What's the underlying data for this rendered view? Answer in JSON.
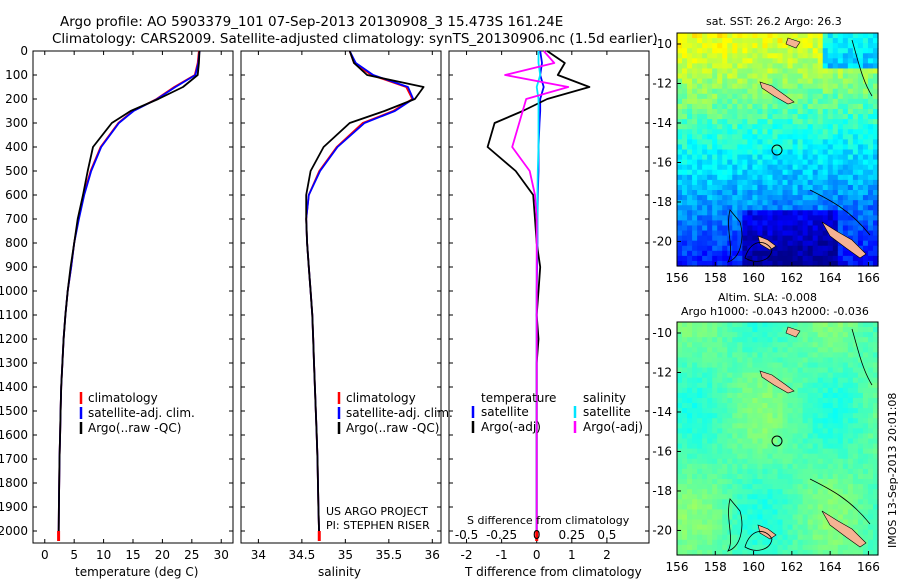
{
  "header": {
    "title_line1": "Argo profile: AO 5903379_101 07-Sep-2013 20130908_3 15.473S 161.24E",
    "title_line2": "Climatology: CARS2009. Satellite-adjusted climatology: synTS_20130906.nc (1.5d earlier)"
  },
  "colors": {
    "climatology": "#ff0000",
    "satellite": "#0000ff",
    "argo": "#000000",
    "salinity_satellite": "#00e5ff",
    "salinity_argo": "#ff00ff",
    "land": "#f5b393"
  },
  "depth_axis": {
    "ticks": [
      "0",
      "100",
      "200",
      "300",
      "400",
      "500",
      "600",
      "700",
      "800",
      "900",
      "1000",
      "1100",
      "1200",
      "1300",
      "1400",
      "1500",
      "1600",
      "1700",
      "1800",
      "1900",
      "2000"
    ]
  },
  "panels": {
    "temperature": {
      "xlabel": "temperature (deg C)",
      "ticks": [
        "0",
        "5",
        "10",
        "15",
        "20",
        "25",
        "30"
      ],
      "legend": [
        "climatology",
        "satellite-adj. clim.",
        "Argo(..raw -QC)"
      ]
    },
    "salinity": {
      "xlabel": "salinity",
      "ticks": [
        "34",
        "34.5",
        "35",
        "35.5",
        "36"
      ],
      "legend": [
        "climatology",
        "satellite-adj. clim.",
        "Argo(..raw -QC)"
      ],
      "note_line1": "US ARGO PROJECT",
      "note_line2": "PI: STEPHEN RISER"
    },
    "difference": {
      "xlabel": "T difference from climatology",
      "top_label": "S difference from climatology",
      "t_ticks": [
        "-2",
        "-1",
        "0",
        "1",
        "2"
      ],
      "s_ticks": [
        "-0.5",
        "-0.25",
        "0",
        "0.25",
        "0.5"
      ],
      "legend_temperature_head": "temperature",
      "legend_salinity_head": "salinity",
      "legend_satellite": "satellite",
      "legend_argo": "Argo(-adj)"
    },
    "sst_map": {
      "title": "sat. SST: 26.2 Argo: 26.3",
      "xticks": [
        "156",
        "158",
        "160",
        "162",
        "164",
        "166"
      ],
      "yticks": [
        "-10",
        "-12",
        "-14",
        "-16",
        "-18",
        "-20"
      ]
    },
    "sla_map": {
      "title_line1": "Altim. SLA: -0.008",
      "title_line2": "Argo h1000: -0.043 h2000: -0.036",
      "xticks": [
        "156",
        "158",
        "160",
        "162",
        "164",
        "166"
      ],
      "yticks": [
        "-10",
        "-12",
        "-14",
        "-16",
        "-18",
        "-20"
      ]
    }
  },
  "side_stamp": "IMOS 13-Sep-2013 20:01:08",
  "chart_data": [
    {
      "type": "line",
      "panel": "temperature",
      "xlabel": "temperature (deg C)",
      "ylim": [
        2050,
        0
      ],
      "xlim": [
        -2,
        32
      ],
      "series": [
        {
          "name": "climatology",
          "x": [
            26.2,
            26.0,
            25.5,
            22,
            19,
            15,
            12.5,
            9.5,
            7.8,
            6.6,
            5.7,
            5.0,
            4.5,
            3.9,
            3.5,
            3.2,
            3.0,
            2.8,
            2.7,
            2.6,
            2.5,
            2.4,
            2.35
          ],
          "y": [
            0,
            50,
            100,
            150,
            200,
            250,
            300,
            400,
            500,
            600,
            700,
            800,
            900,
            1000,
            1100,
            1200,
            1300,
            1400,
            1500,
            1600,
            1700,
            1900,
            2040
          ]
        },
        {
          "name": "satellite-adj. clim.",
          "x": [
            26.3,
            26.1,
            25.6,
            22.2,
            19.1,
            15.1,
            12.6,
            9.6,
            7.9,
            6.7,
            5.8,
            5.0,
            4.5,
            3.9,
            3.5,
            3.2,
            3.0,
            2.8,
            2.7,
            2.6,
            2.5,
            2.4,
            2.35
          ],
          "y": [
            0,
            50,
            100,
            150,
            200,
            250,
            300,
            400,
            500,
            600,
            700,
            800,
            900,
            1000,
            1100,
            1200,
            1300,
            1400,
            1500,
            1600,
            1700,
            1900,
            2040
          ]
        },
        {
          "name": "Argo(..raw -QC)",
          "x": [
            26.3,
            26.2,
            26.0,
            23.5,
            19.3,
            14.6,
            11.4,
            8.2,
            7.3,
            6.5,
            5.6,
            5.0,
            4.4,
            3.9,
            3.5,
            3.2,
            3.0,
            2.8,
            2.7,
            2.6,
            2.5,
            2.4,
            2.35
          ],
          "y": [
            0,
            50,
            100,
            150,
            200,
            250,
            300,
            400,
            500,
            600,
            700,
            800,
            900,
            1000,
            1100,
            1200,
            1300,
            1400,
            1500,
            1600,
            1700,
            1900,
            2040
          ]
        }
      ]
    },
    {
      "type": "line",
      "panel": "salinity",
      "xlabel": "salinity",
      "ylim": [
        2050,
        0
      ],
      "xlim": [
        33.8,
        36.1
      ],
      "series": [
        {
          "name": "climatology",
          "x": [
            35.05,
            35.1,
            35.3,
            35.7,
            35.77,
            35.55,
            35.2,
            34.9,
            34.7,
            34.58,
            34.55,
            34.56,
            34.58,
            34.6,
            34.62,
            34.63,
            34.64,
            34.65,
            34.66,
            34.67,
            34.68,
            34.69,
            34.7
          ],
          "y": [
            0,
            50,
            100,
            150,
            200,
            250,
            300,
            400,
            500,
            600,
            700,
            800,
            900,
            1000,
            1100,
            1200,
            1300,
            1400,
            1500,
            1600,
            1700,
            1900,
            2040
          ]
        },
        {
          "name": "satellite-adj. clim.",
          "x": [
            35.05,
            35.12,
            35.32,
            35.72,
            35.78,
            35.57,
            35.22,
            34.91,
            34.71,
            34.58,
            34.55,
            34.56,
            34.58,
            34.6,
            34.62,
            34.63,
            34.64,
            34.65,
            34.66,
            34.67,
            34.68,
            34.69,
            34.7
          ],
          "y": [
            0,
            50,
            100,
            150,
            200,
            250,
            300,
            400,
            500,
            600,
            700,
            800,
            900,
            1000,
            1100,
            1200,
            1300,
            1400,
            1500,
            1600,
            1700,
            1900,
            2040
          ]
        },
        {
          "name": "Argo(..raw -QC)",
          "x": [
            35.05,
            35.1,
            35.25,
            35.9,
            35.8,
            35.45,
            35.05,
            34.75,
            34.6,
            34.55,
            34.55,
            34.56,
            34.58,
            34.6,
            34.62,
            34.63,
            34.64,
            34.65,
            34.66,
            34.67,
            34.68,
            34.69,
            34.7
          ],
          "y": [
            0,
            50,
            100,
            150,
            200,
            250,
            300,
            400,
            500,
            600,
            700,
            800,
            900,
            1000,
            1100,
            1200,
            1300,
            1400,
            1500,
            1600,
            1700,
            1900,
            2040
          ]
        }
      ]
    },
    {
      "type": "line",
      "panel": "difference",
      "xlabel": "T difference from climatology",
      "ylim": [
        2050,
        0
      ],
      "xlim": [
        -2.5,
        3.2
      ],
      "series": [
        {
          "name": "temperature satellite",
          "x": [
            0.1,
            0.15,
            0.1,
            0.2,
            0.1,
            0.1,
            0.08,
            0.05,
            0.05,
            0.03,
            0.02,
            0.02,
            0.01,
            0.0,
            0.0,
            0.0,
            0.0,
            0.0,
            0.0,
            0.0,
            0.0,
            0.0,
            0.0
          ],
          "y": [
            0,
            50,
            100,
            150,
            200,
            250,
            300,
            400,
            500,
            600,
            700,
            800,
            900,
            1000,
            1100,
            1200,
            1300,
            1400,
            1500,
            1600,
            1700,
            1900,
            2040
          ]
        },
        {
          "name": "temperature Argo(-adj)",
          "x": [
            0.3,
            0.8,
            0.6,
            1.5,
            0.3,
            -0.4,
            -1.2,
            -1.4,
            -0.6,
            -0.1,
            -0.05,
            0.0,
            0.1,
            0.05,
            0.0,
            0.05,
            0.0,
            0.0,
            0.0,
            0.0,
            0.0,
            0.0,
            0.0
          ],
          "y": [
            0,
            50,
            100,
            150,
            200,
            250,
            300,
            400,
            500,
            600,
            700,
            800,
            900,
            1000,
            1100,
            1200,
            1300,
            1400,
            1500,
            1600,
            1700,
            1900,
            2040
          ]
        },
        {
          "name": "salinity satellite",
          "x": [
            0.05,
            0.05,
            0.1,
            0.0,
            0.05,
            0.05,
            0.05,
            0.05,
            0.03,
            0.02,
            0.02,
            0.01,
            0.0,
            0.0,
            0.0,
            0.0,
            0.0,
            0.0,
            0.0,
            0.0,
            0.0,
            0.0,
            0.0
          ],
          "y": [
            0,
            50,
            100,
            150,
            200,
            250,
            300,
            400,
            500,
            600,
            700,
            800,
            900,
            1000,
            1100,
            1200,
            1300,
            1400,
            1500,
            1600,
            1700,
            1900,
            2040
          ]
        },
        {
          "name": "salinity Argo(-adj)",
          "x": [
            0.2,
            0.5,
            -0.9,
            0.9,
            -0.3,
            -0.4,
            -0.5,
            -0.7,
            -0.2,
            -0.05,
            0.0,
            0.0,
            0.0,
            0.0,
            0.0,
            0.0,
            0.0,
            0.0,
            0.0,
            0.0,
            0.0,
            0.0,
            0.0
          ],
          "y": [
            0,
            50,
            100,
            150,
            200,
            250,
            300,
            400,
            500,
            600,
            700,
            800,
            900,
            1000,
            1100,
            1200,
            1300,
            1400,
            1500,
            1600,
            1700,
            1900,
            2040
          ]
        }
      ]
    },
    {
      "type": "heatmap",
      "panel": "sst_map",
      "title": "sat. SST: 26.2 Argo: 26.3",
      "xlim": [
        156,
        166.5
      ],
      "ylim": [
        -21.3,
        -9.5
      ],
      "argo_position": [
        161.24,
        -15.47
      ]
    },
    {
      "type": "heatmap",
      "panel": "sla_map",
      "title": "Altim. SLA: -0.008",
      "xlim": [
        156,
        166.5
      ],
      "ylim": [
        -21.3,
        -9.5
      ],
      "argo_position": [
        161.24,
        -15.47
      ]
    }
  ]
}
